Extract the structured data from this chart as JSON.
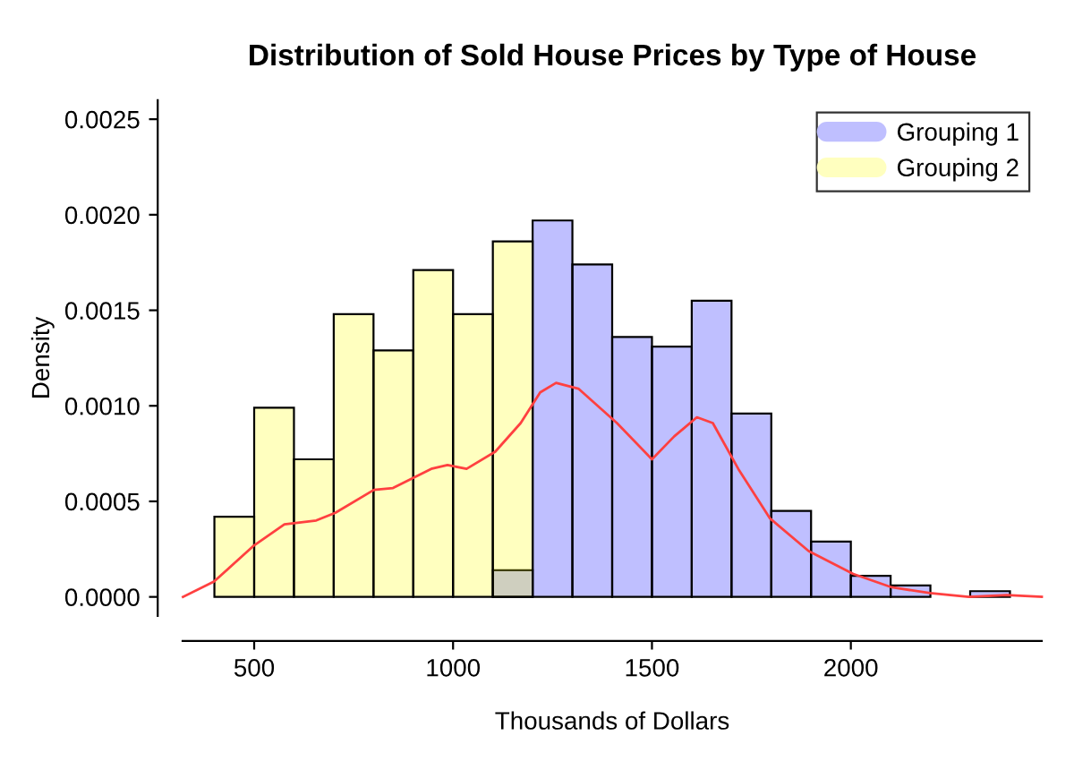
{
  "chart_data": {
    "type": "histogram",
    "title": "Distribution of Sold House Prices by Type of House",
    "xlabel": "Thousands of Dollars",
    "ylabel": "Density",
    "series": [
      {
        "name": "Grouping 1",
        "color": "#bfbfff",
        "bins": [
          1100,
          1200,
          1300,
          1400,
          1500,
          1600,
          1700,
          1800,
          1900,
          2000,
          2100,
          2200,
          2300,
          2400
        ],
        "values": [
          0.00014,
          0.00197,
          0.00174,
          0.00136,
          0.00131,
          0.00155,
          0.00096,
          0.00045,
          0.00029,
          0.00011,
          6e-05,
          0,
          3e-05
        ]
      },
      {
        "name": "Grouping 2",
        "color": "#ffffbf",
        "bins": [
          400,
          500,
          600,
          700,
          800,
          900,
          1000,
          1100,
          1200
        ],
        "values": [
          0.00042,
          0.00099,
          0.00072,
          0.00148,
          0.00129,
          0.00171,
          0.00148,
          0.00186
        ]
      },
      {
        "type": "line",
        "color": "#ff4040",
        "x": [
          321,
          399,
          500,
          576,
          656,
          704,
          801,
          849,
          945,
          986,
          1034,
          1106,
          1170,
          1219,
          1259,
          1315,
          1412,
          1500,
          1556,
          1613,
          1653,
          1717,
          1797,
          1894,
          2006,
          2103,
          2199,
          2296,
          2392,
          2480
        ],
        "values": [
          0,
          8e-05,
          0.00027,
          0.00038,
          0.0004,
          0.00044,
          0.00056,
          0.00057,
          0.00067,
          0.00069,
          0.00067,
          0.00076,
          0.00091,
          0.00107,
          0.00112,
          0.00109,
          0.00091,
          0.00072,
          0.00084,
          0.00094,
          0.00091,
          0.00067,
          0.00041,
          0.00024,
          0.00012,
          5e-05,
          2e-05,
          0,
          1e-05,
          0
        ]
      }
    ],
    "xlim": [
      320,
      2480
    ],
    "xticks": [
      500,
      1000,
      1500,
      2000
    ],
    "ylim": [
      -0.0001,
      0.0026
    ],
    "yticks": [
      {
        "value": 0,
        "label": "0.0000"
      },
      {
        "value": 0.0005,
        "label": "0.0005"
      },
      {
        "value": 0.001,
        "label": "0.0010"
      },
      {
        "value": 0.0015,
        "label": "0.0015"
      },
      {
        "value": 0.002,
        "label": "0.0020"
      },
      {
        "value": 0.0025,
        "label": "0.0025"
      }
    ],
    "legend": "top right",
    "grid": false
  }
}
